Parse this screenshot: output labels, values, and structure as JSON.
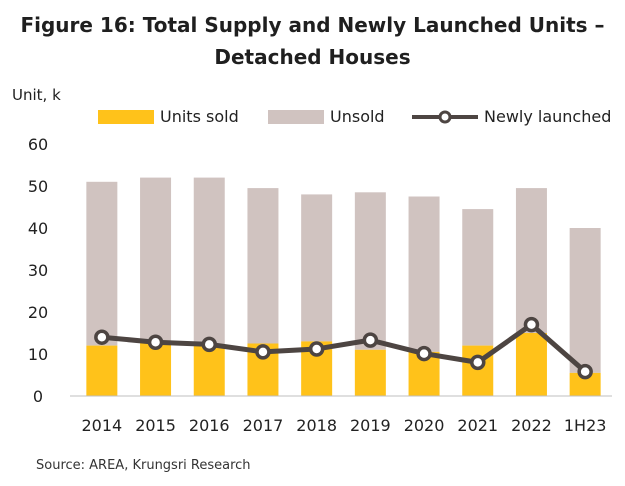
{
  "title_line1": "Figure 16: Total Supply and Newly Launched Units –",
  "title_line2": "Detached Houses",
  "unit_label": "Unit, k",
  "source": "Source:  AREA, Krungsri Research",
  "colors": {
    "units_sold": "#FFC21A",
    "unsold": "#D0C3C0",
    "newly_launched": "#4D4542",
    "marker_fill": "#FFFFFF"
  },
  "chart_data": {
    "type": "bar",
    "stacked": true,
    "categories": [
      "2014",
      "2015",
      "2016",
      "2017",
      "2018",
      "2019",
      "2020",
      "2021",
      "2022",
      "1H23"
    ],
    "series": [
      {
        "name": "Units sold",
        "kind": "bar",
        "values": [
          12,
          13,
          12,
          12.5,
          13,
          11,
          10.5,
          12,
          15,
          5.5
        ]
      },
      {
        "name": "Unsold",
        "kind": "bar",
        "values": [
          39,
          39,
          40,
          37,
          35,
          37.5,
          37,
          32.5,
          34.5,
          34.5
        ]
      },
      {
        "name": "Newly launched",
        "kind": "line",
        "values": [
          14,
          12.8,
          12.3,
          10.5,
          11.2,
          13.3,
          10.1,
          8,
          17,
          5.8
        ]
      }
    ],
    "yticks": [
      "0",
      "10",
      "20",
      "30",
      "40",
      "50",
      "60"
    ],
    "ylim": [
      0,
      60
    ],
    "legend_position": "top"
  }
}
